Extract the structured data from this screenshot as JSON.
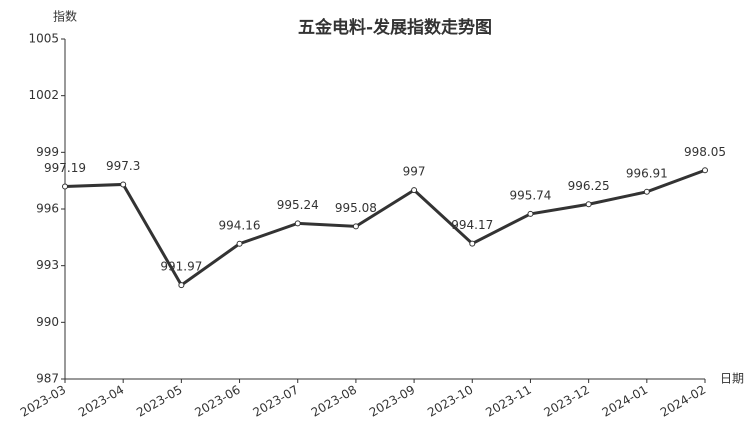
{
  "chart_data": {
    "type": "line",
    "title": "五金电料-发展指数走势图",
    "y_label": "指数",
    "x_label": "日期",
    "categories": [
      "2023-03",
      "2023-04",
      "2023-05",
      "2023-06",
      "2023-07",
      "2023-08",
      "2023-09",
      "2023-10",
      "2023-11",
      "2023-12",
      "2024-01",
      "2024-02"
    ],
    "series": [
      {
        "name": "发展指数",
        "color": "#333333",
        "values": [
          997.19,
          997.3,
          991.97,
          994.16,
          995.24,
          995.08,
          997,
          994.17,
          995.74,
          996.25,
          996.91,
          998.05
        ]
      }
    ],
    "ylim": [
      987,
      1005
    ],
    "yticks": [
      987,
      990,
      993,
      996,
      999,
      1002,
      1005
    ],
    "grid": false
  }
}
